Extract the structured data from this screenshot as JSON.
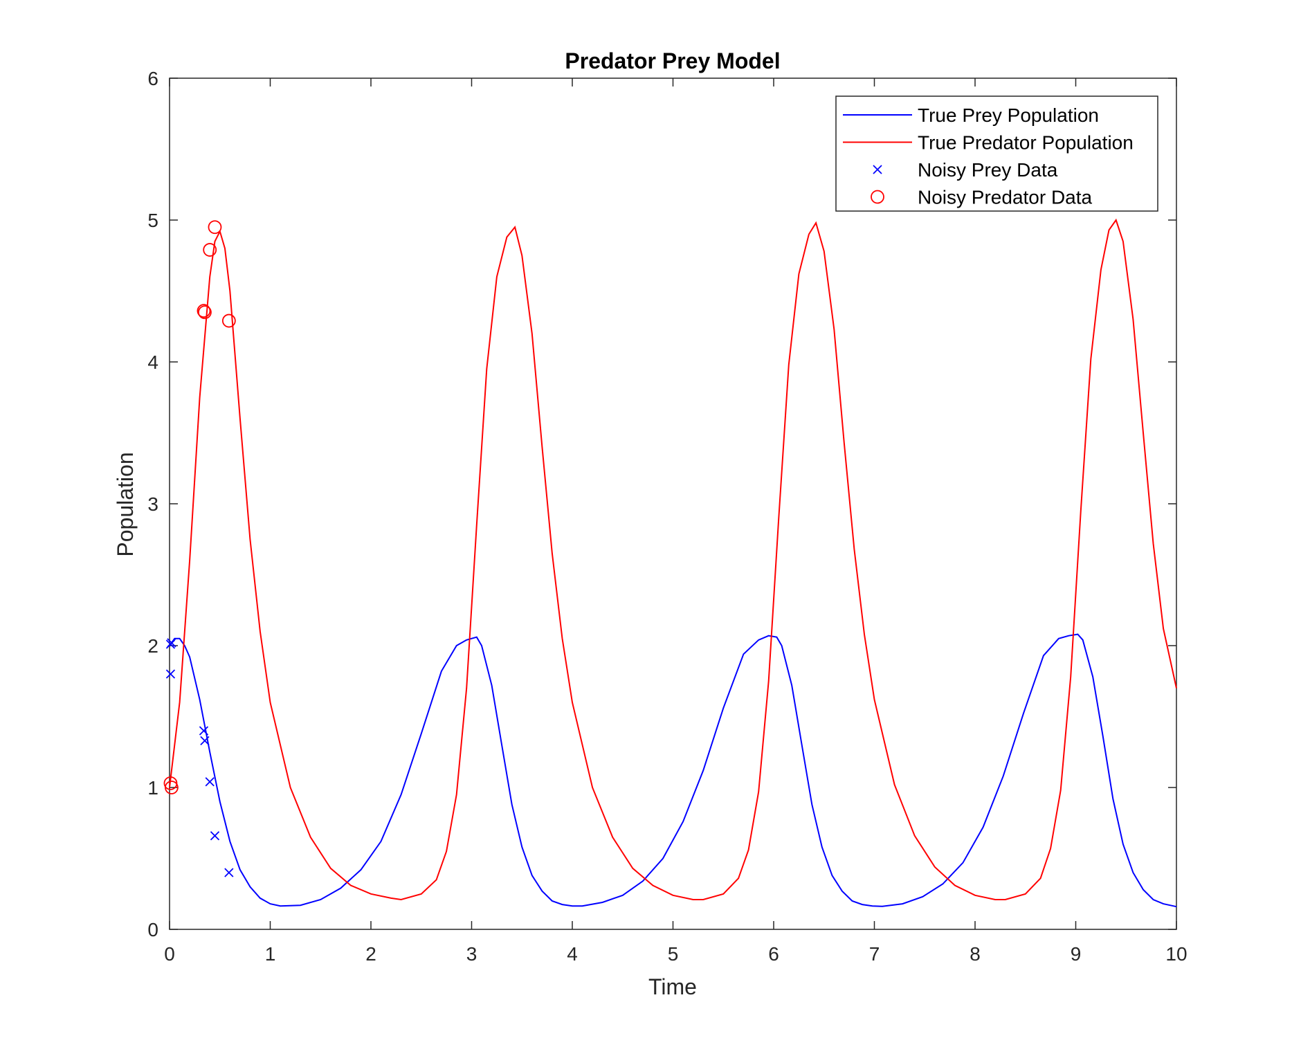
{
  "chart_data": {
    "type": "line",
    "title": "Predator Prey Model",
    "xlabel": "Time",
    "ylabel": "Population",
    "xlim": [
      0,
      10
    ],
    "ylim": [
      0,
      6
    ],
    "xticks": [
      "0",
      "1",
      "2",
      "3",
      "4",
      "5",
      "6",
      "7",
      "8",
      "9",
      "10"
    ],
    "yticks": [
      "0",
      "1",
      "2",
      "3",
      "4",
      "5",
      "6"
    ],
    "grid": false,
    "legend_position": "top-right",
    "series": [
      {
        "name": "True Prey Population",
        "kind": "line",
        "color": "#0000ff",
        "x": [
          0,
          0.05,
          0.1,
          0.15,
          0.2,
          0.3,
          0.4,
          0.5,
          0.6,
          0.7,
          0.8,
          0.9,
          1.0,
          1.1,
          1.3,
          1.5,
          1.7,
          1.9,
          2.1,
          2.3,
          2.5,
          2.7,
          2.85,
          2.95,
          3.05,
          3.1,
          3.2,
          3.3,
          3.4,
          3.5,
          3.6,
          3.7,
          3.8,
          3.9,
          4.0,
          4.1,
          4.3,
          4.5,
          4.7,
          4.9,
          5.1,
          5.3,
          5.5,
          5.7,
          5.85,
          5.95,
          6.03,
          6.08,
          6.18,
          6.28,
          6.38,
          6.48,
          6.58,
          6.68,
          6.78,
          6.88,
          6.98,
          7.08,
          7.28,
          7.48,
          7.68,
          7.88,
          8.08,
          8.28,
          8.48,
          8.68,
          8.83,
          8.93,
          9.02,
          9.07,
          9.17,
          9.27,
          9.37,
          9.47,
          9.57,
          9.67,
          9.77,
          9.87,
          10.0
        ],
        "y": [
          2.0,
          2.05,
          2.05,
          2.0,
          1.92,
          1.62,
          1.25,
          0.9,
          0.62,
          0.42,
          0.3,
          0.22,
          0.18,
          0.165,
          0.17,
          0.21,
          0.29,
          0.42,
          0.62,
          0.95,
          1.38,
          1.82,
          2.0,
          2.04,
          2.06,
          2.0,
          1.72,
          1.3,
          0.88,
          0.58,
          0.38,
          0.27,
          0.2,
          0.175,
          0.165,
          0.165,
          0.19,
          0.24,
          0.34,
          0.5,
          0.76,
          1.12,
          1.56,
          1.94,
          2.04,
          2.07,
          2.06,
          2.0,
          1.72,
          1.3,
          0.88,
          0.58,
          0.38,
          0.27,
          0.2,
          0.175,
          0.165,
          0.162,
          0.18,
          0.23,
          0.32,
          0.47,
          0.72,
          1.08,
          1.52,
          1.93,
          2.05,
          2.07,
          2.08,
          2.04,
          1.78,
          1.36,
          0.92,
          0.6,
          0.4,
          0.28,
          0.21,
          0.18,
          0.16
        ]
      },
      {
        "name": "True Predator Population",
        "kind": "line",
        "color": "#ff0000",
        "x": [
          0,
          0.1,
          0.2,
          0.3,
          0.4,
          0.45,
          0.5,
          0.55,
          0.6,
          0.7,
          0.8,
          0.9,
          1.0,
          1.2,
          1.4,
          1.6,
          1.8,
          2.0,
          2.2,
          2.3,
          2.5,
          2.65,
          2.75,
          2.85,
          2.95,
          3.05,
          3.15,
          3.25,
          3.35,
          3.43,
          3.5,
          3.6,
          3.7,
          3.8,
          3.9,
          4.0,
          4.2,
          4.4,
          4.6,
          4.8,
          5.0,
          5.2,
          5.3,
          5.5,
          5.65,
          5.75,
          5.85,
          5.95,
          6.05,
          6.15,
          6.25,
          6.35,
          6.42,
          6.5,
          6.6,
          6.7,
          6.8,
          6.9,
          7.0,
          7.2,
          7.4,
          7.6,
          7.8,
          8.0,
          8.2,
          8.3,
          8.5,
          8.65,
          8.75,
          8.85,
          8.95,
          9.05,
          9.15,
          9.25,
          9.33,
          9.4,
          9.47,
          9.57,
          9.67,
          9.77,
          9.87,
          10.0
        ],
        "y": [
          1.0,
          1.6,
          2.6,
          3.75,
          4.6,
          4.85,
          4.92,
          4.8,
          4.5,
          3.6,
          2.75,
          2.1,
          1.6,
          1.0,
          0.65,
          0.43,
          0.31,
          0.25,
          0.22,
          0.21,
          0.25,
          0.35,
          0.55,
          0.95,
          1.7,
          2.85,
          3.95,
          4.6,
          4.88,
          4.95,
          4.75,
          4.2,
          3.4,
          2.65,
          2.05,
          1.6,
          1.0,
          0.65,
          0.43,
          0.31,
          0.24,
          0.21,
          0.21,
          0.25,
          0.36,
          0.56,
          0.97,
          1.75,
          2.9,
          3.98,
          4.62,
          4.9,
          4.98,
          4.78,
          4.23,
          3.43,
          2.68,
          2.08,
          1.62,
          1.02,
          0.66,
          0.44,
          0.31,
          0.24,
          0.21,
          0.21,
          0.25,
          0.36,
          0.57,
          0.98,
          1.78,
          2.95,
          4.02,
          4.65,
          4.93,
          5.0,
          4.85,
          4.3,
          3.5,
          2.72,
          2.12,
          1.7
        ]
      },
      {
        "name": "Noisy Prey Data",
        "kind": "scatter",
        "marker": "x",
        "color": "#0000ff",
        "x": [
          0.01,
          0.02,
          0.01,
          0.34,
          0.35,
          0.4,
          0.45,
          0.59
        ],
        "y": [
          2.01,
          2.02,
          1.8,
          1.4,
          1.33,
          1.04,
          0.66,
          0.4
        ]
      },
      {
        "name": "Noisy Predator Data",
        "kind": "scatter",
        "marker": "o",
        "color": "#ff0000",
        "x": [
          0.01,
          0.02,
          0.34,
          0.35,
          0.4,
          0.45,
          0.59
        ],
        "y": [
          1.03,
          1.0,
          4.36,
          4.35,
          4.79,
          4.95,
          4.29
        ]
      }
    ]
  }
}
